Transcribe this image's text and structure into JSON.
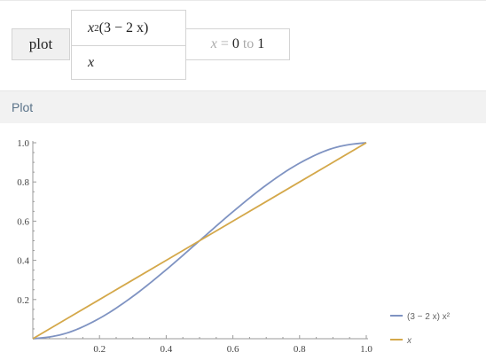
{
  "input": {
    "command": "plot",
    "functions": [
      {
        "prefix": "x",
        "power": "2",
        "rest": " (3 − 2 x)"
      },
      {
        "prefix": "x",
        "power": "",
        "rest": ""
      }
    ],
    "range": {
      "variable": "x",
      "equals": "=",
      "from": "0",
      "to_word": "to",
      "to": "1"
    }
  },
  "pod": {
    "title": "Plot"
  },
  "chart_data": {
    "type": "line",
    "title": "",
    "xlabel": "",
    "ylabel": "",
    "xlim": [
      0,
      1
    ],
    "ylim": [
      0,
      1
    ],
    "x_ticks": [
      "0.2",
      "0.4",
      "0.6",
      "0.8",
      "1.0"
    ],
    "y_ticks": [
      "0.2",
      "0.4",
      "0.6",
      "0.8",
      "1.0"
    ],
    "x": [
      0,
      0.1,
      0.2,
      0.3,
      0.4,
      0.5,
      0.6,
      0.7,
      0.8,
      0.9,
      1.0
    ],
    "series": [
      {
        "name": "(3 − 2 x) x²",
        "color": "#7f93c2",
        "values": [
          0,
          0.028,
          0.104,
          0.216,
          0.352,
          0.5,
          0.648,
          0.784,
          0.896,
          0.972,
          1.0
        ]
      },
      {
        "name": "x",
        "color": "#d4a84a",
        "values": [
          0,
          0.1,
          0.2,
          0.3,
          0.4,
          0.5,
          0.6,
          0.7,
          0.8,
          0.9,
          1.0
        ]
      }
    ],
    "legend_position": "bottom-right",
    "grid": false
  }
}
